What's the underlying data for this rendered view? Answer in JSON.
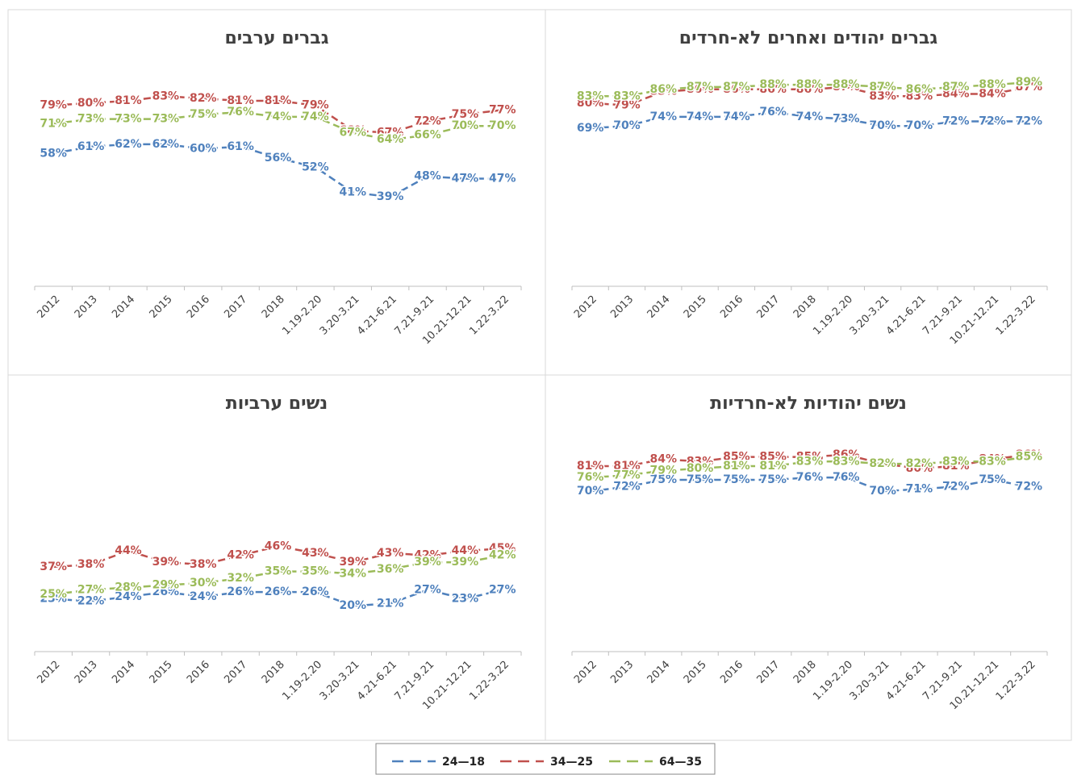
{
  "chart_data": [
    {
      "type": "line",
      "title": "גברים ערבים",
      "categories": [
        "2012",
        "2013",
        "2014",
        "2015",
        "2016",
        "2017",
        "2018",
        "1.19-2.20",
        "3.20-3.21",
        "4.21-6.21",
        "7.21-9.21",
        "10.21-12.21",
        "1.22-3.22"
      ],
      "ylim": [
        0,
        100
      ],
      "series": [
        {
          "name": "24—18",
          "color": "#4f81bd",
          "values": [
            58,
            61,
            62,
            62,
            60,
            61,
            56,
            52,
            41,
            39,
            48,
            47,
            47
          ],
          "value_labels": [
            "58%",
            "61%",
            "62%",
            "62%",
            "60%",
            "61%",
            "56%",
            "52%",
            "41%",
            "39%",
            "48%",
            "47%",
            "47%"
          ]
        },
        {
          "name": "34—25",
          "color": "#c0504d",
          "values": [
            79,
            80,
            81,
            83,
            82,
            81,
            81,
            79,
            68,
            67,
            72,
            75,
            77
          ],
          "value_labels": [
            "79%",
            "80%",
            "81%",
            "83%",
            "82%",
            "81%",
            "81%",
            "79%",
            "68%",
            "67%",
            "72%",
            "75%",
            "77%"
          ]
        },
        {
          "name": "64—35",
          "color": "#9bbb59",
          "values": [
            71,
            73,
            73,
            73,
            75,
            76,
            74,
            74,
            67,
            64,
            66,
            70,
            70
          ],
          "value_labels": [
            "71%",
            "73%",
            "73%",
            "73%",
            "75%",
            "76%",
            "74%",
            "74%",
            "67%",
            "64%",
            "66%",
            "70%",
            "70%"
          ]
        }
      ]
    },
    {
      "type": "line",
      "title": "גברים יהודים ואחרים לא-חרדים",
      "categories": [
        "2012",
        "2013",
        "2014",
        "2015",
        "2016",
        "2017",
        "2018",
        "1.19-2.20",
        "3.20-3.21",
        "4.21-6.21",
        "7.21-9.21",
        "10.21-12.21",
        "1.22-3.22"
      ],
      "ylim": [
        0,
        100
      ],
      "series": [
        {
          "name": "24—18",
          "color": "#4f81bd",
          "values": [
            69,
            70,
            74,
            74,
            74,
            76,
            74,
            73,
            70,
            70,
            72,
            72,
            72
          ],
          "value_labels": [
            "69%",
            "70%",
            "74%",
            "74%",
            "74%",
            "76%",
            "74%",
            "73%",
            "70%",
            "70%",
            "72%",
            "72%",
            "72%"
          ]
        },
        {
          "name": "34—25",
          "color": "#c0504d",
          "values": [
            80,
            79,
            85,
            86,
            86,
            86,
            86,
            87,
            83,
            83,
            84,
            84,
            87
          ],
          "value_labels": [
            "80%",
            "79%",
            "85%",
            "86%",
            "86%",
            "86%",
            "86%",
            "87%",
            "83%",
            "83%",
            "84%",
            "84%",
            "87%"
          ]
        },
        {
          "name": "64—35",
          "color": "#9bbb59",
          "values": [
            83,
            83,
            86,
            87,
            87,
            88,
            88,
            88,
            87,
            86,
            87,
            88,
            89
          ],
          "value_labels": [
            "83%",
            "83%",
            "86%",
            "87%",
            "87%",
            "88%",
            "88%",
            "88%",
            "87%",
            "86%",
            "87%",
            "88%",
            "89%"
          ]
        }
      ]
    },
    {
      "type": "line",
      "title": "נשים ערביות",
      "categories": [
        "2012",
        "2013",
        "2014",
        "2015",
        "2016",
        "2017",
        "2018",
        "1.19-2.20",
        "3.20-3.21",
        "4.21-6.21",
        "7.21-9.21",
        "10.21-12.21",
        "1.22-3.22"
      ],
      "ylim": [
        0,
        100
      ],
      "series": [
        {
          "name": "24—18",
          "color": "#4f81bd",
          "values": [
            23,
            22,
            24,
            26,
            24,
            26,
            26,
            26,
            20,
            21,
            27,
            23,
            27
          ],
          "value_labels": [
            "23%",
            "22%",
            "24%",
            "26%",
            "24%",
            "26%",
            "26%",
            "26%",
            "20%",
            "21%",
            "27%",
            "23%",
            "27%"
          ]
        },
        {
          "name": "34—25",
          "color": "#c0504d",
          "values": [
            37,
            38,
            44,
            39,
            38,
            42,
            46,
            43,
            39,
            43,
            42,
            44,
            45
          ],
          "value_labels": [
            "37%",
            "38%",
            "44%",
            "39%",
            "38%",
            "42%",
            "46%",
            "43%",
            "39%",
            "43%",
            "42%",
            "44%",
            "45%"
          ]
        },
        {
          "name": "64—35",
          "color": "#9bbb59",
          "values": [
            25,
            27,
            28,
            29,
            30,
            32,
            35,
            35,
            34,
            36,
            39,
            39,
            42
          ],
          "value_labels": [
            "25%",
            "27%",
            "28%",
            "29%",
            "30%",
            "32%",
            "35%",
            "35%",
            "34%",
            "36%",
            "39%",
            "39%",
            "42%"
          ]
        }
      ]
    },
    {
      "type": "line",
      "title": "נשים יהודיות לא-חרדיות",
      "categories": [
        "2012",
        "2013",
        "2014",
        "2015",
        "2016",
        "2017",
        "2018",
        "1.19-2.20",
        "3.20-3.21",
        "4.21-6.21",
        "7.21-9.21",
        "10.21-12.21",
        "1.22-3.22"
      ],
      "ylim": [
        0,
        100
      ],
      "series": [
        {
          "name": "24—18",
          "color": "#4f81bd",
          "values": [
            70,
            72,
            75,
            75,
            75,
            75,
            76,
            76,
            70,
            71,
            72,
            75,
            72
          ],
          "value_labels": [
            "70%",
            "72%",
            "75%",
            "75%",
            "75%",
            "75%",
            "76%",
            "76%",
            "70%",
            "71%",
            "72%",
            "75%",
            "72%"
          ]
        },
        {
          "name": "34—25",
          "color": "#c0504d",
          "values": [
            81,
            81,
            84,
            83,
            85,
            85,
            85,
            86,
            82,
            80,
            81,
            84,
            86
          ],
          "value_labels": [
            "81%",
            "81%",
            "84%",
            "83%",
            "85%",
            "85%",
            "85%",
            "86%",
            "82%",
            "80%",
            "81%",
            "84%",
            "86%"
          ]
        },
        {
          "name": "64—35",
          "color": "#9bbb59",
          "values": [
            76,
            77,
            79,
            80,
            81,
            81,
            83,
            83,
            82,
            82,
            83,
            83,
            85
          ],
          "value_labels": [
            "76%",
            "77%",
            "79%",
            "80%",
            "81%",
            "81%",
            "83%",
            "83%",
            "82%",
            "82%",
            "83%",
            "83%",
            "85%"
          ]
        }
      ]
    }
  ]
}
